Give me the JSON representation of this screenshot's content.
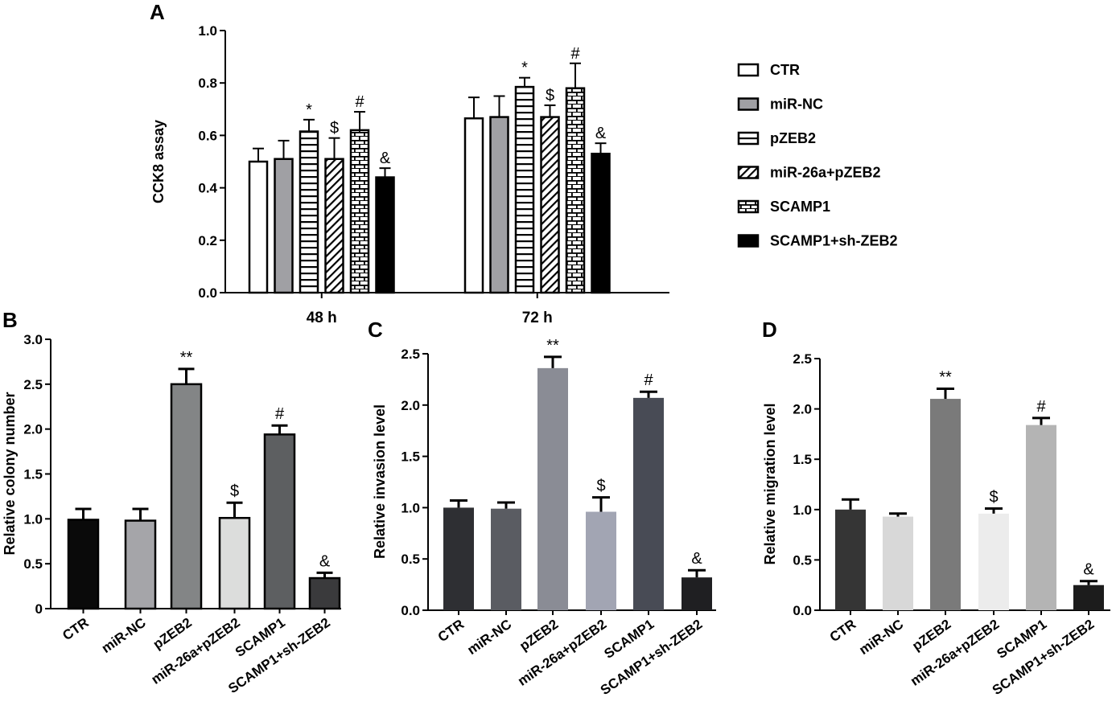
{
  "colors": {
    "axis": "#000000",
    "panelA": [
      "#ffffff",
      "#a0a0a4",
      "#ffffff",
      "#ffffff",
      "#ffffff",
      "#000000"
    ],
    "panelB": [
      "#0a0a0a",
      "#a5a5a9",
      "#838586",
      "#dcdddc",
      "#5d5f61",
      "#3a3a3c"
    ],
    "panelC": [
      "#2e2f33",
      "#5a5c62",
      "#8a8c95",
      "#a2a5b3",
      "#484b55",
      "#1f1f22"
    ],
    "panelD": [
      "#353535",
      "#d8d8d8",
      "#7a7a7a",
      "#ececec",
      "#b4b4b4",
      "#1c1c1c"
    ]
  },
  "chart_data": [
    {
      "panel": "A",
      "type": "bar",
      "ylabel": "CCK8 assay",
      "ylim": [
        0,
        1.0
      ],
      "yticks": [
        "0.0",
        "0.2",
        "0.4",
        "0.6",
        "0.8",
        "1.0"
      ],
      "categories": [
        "48 h",
        "72 h"
      ],
      "legend_position": "right",
      "series": [
        {
          "name": "CTR",
          "pattern": "open",
          "values": [
            0.5,
            0.665
          ],
          "errors": [
            0.05,
            0.08
          ],
          "annotations": [
            "",
            ""
          ]
        },
        {
          "name": "miR-NC",
          "pattern": "gray",
          "values": [
            0.51,
            0.67
          ],
          "errors": [
            0.07,
            0.08
          ],
          "annotations": [
            "",
            ""
          ]
        },
        {
          "name": "pZEB2",
          "pattern": "horizontal-lines",
          "values": [
            0.615,
            0.785
          ],
          "errors": [
            0.045,
            0.035
          ],
          "annotations": [
            "*",
            "*"
          ]
        },
        {
          "name": "miR-26a+pZEB2",
          "pattern": "diagonal-hatch",
          "values": [
            0.51,
            0.67
          ],
          "errors": [
            0.08,
            0.045
          ],
          "annotations": [
            "$",
            "$"
          ]
        },
        {
          "name": "SCAMP1",
          "pattern": "brick",
          "values": [
            0.62,
            0.78
          ],
          "errors": [
            0.07,
            0.095
          ],
          "annotations": [
            "#",
            "#"
          ]
        },
        {
          "name": "SCAMP1+sh-ZEB2",
          "pattern": "solid-black",
          "values": [
            0.44,
            0.53
          ],
          "errors": [
            0.035,
            0.04
          ],
          "annotations": [
            "&",
            "&"
          ]
        }
      ]
    },
    {
      "panel": "B",
      "type": "bar",
      "ylabel": "Relative colony number",
      "ylim": [
        0,
        3.0
      ],
      "yticks": [
        "0",
        "0.5",
        "1.0",
        "1.5",
        "2.0",
        "2.5",
        "3.0"
      ],
      "categories": [
        "CTR",
        "miR-NC",
        "pZEB2",
        "miR-26a+pZEB2",
        "SCAMP1",
        "SCAMP1+sh-ZEB2"
      ],
      "values": [
        0.99,
        0.98,
        2.5,
        1.01,
        1.94,
        0.34
      ],
      "errors": [
        0.12,
        0.13,
        0.17,
        0.17,
        0.1,
        0.06
      ],
      "annotations": [
        "",
        "",
        "**",
        "$",
        "#",
        "&"
      ]
    },
    {
      "panel": "C",
      "type": "bar",
      "ylabel": "Relative invasion level",
      "ylim": [
        0,
        2.5
      ],
      "yticks": [
        "0.0",
        "0.5",
        "1.0",
        "1.5",
        "2.0",
        "2.5"
      ],
      "categories": [
        "CTR",
        "miR-NC",
        "pZEB2",
        "miR-26a+pZEB2",
        "SCAMP1",
        "SCAMP1+sh-ZEB2"
      ],
      "values": [
        1.0,
        0.99,
        2.36,
        0.96,
        2.07,
        0.32
      ],
      "errors": [
        0.07,
        0.06,
        0.11,
        0.14,
        0.06,
        0.07
      ],
      "annotations": [
        "",
        "",
        "**",
        "$",
        "#",
        "&"
      ]
    },
    {
      "panel": "D",
      "type": "bar",
      "ylabel": "Relative migration level",
      "ylim": [
        0,
        2.5
      ],
      "yticks": [
        "0.0",
        "0.5",
        "1.0",
        "1.5",
        "2.0",
        "2.5"
      ],
      "categories": [
        "CTR",
        "miR-NC",
        "pZEB2",
        "miR-26a+pZEB2",
        "SCAMP1",
        "SCAMP1+sh-ZEB2"
      ],
      "values": [
        1.0,
        0.93,
        2.1,
        0.96,
        1.84,
        0.25
      ],
      "errors": [
        0.1,
        0.03,
        0.1,
        0.05,
        0.07,
        0.04
      ],
      "annotations": [
        "",
        "",
        "**",
        "$",
        "#",
        "&"
      ]
    }
  ]
}
